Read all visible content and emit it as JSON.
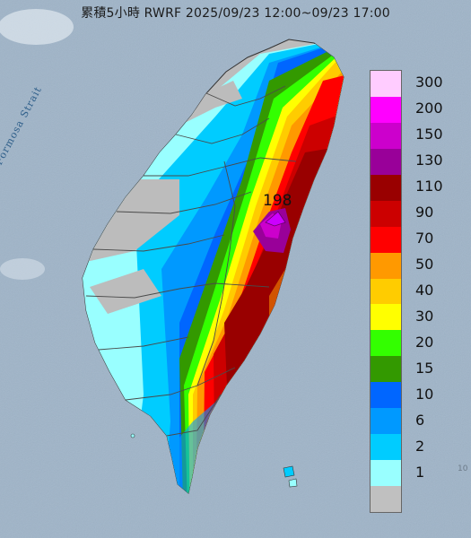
{
  "map": {
    "title": "累積5小時 RWRF 2025/09/23 12:00~09/23 17:00",
    "strait_label": "Formosa Strait",
    "peak_value_label": "198",
    "edge_mark": "10",
    "sea_color": "#9fb4c8",
    "no_rain_color": "#bcbcbc",
    "county_border_color": "#4a4a4a"
  },
  "legend": {
    "items": [
      {
        "label": "300",
        "color": "#ffccff"
      },
      {
        "label": "200",
        "color": "#ff00ff"
      },
      {
        "label": "150",
        "color": "#cc00cc"
      },
      {
        "label": "130",
        "color": "#990099"
      },
      {
        "label": "110",
        "color": "#990000"
      },
      {
        "label": "90",
        "color": "#cc0000"
      },
      {
        "label": "70",
        "color": "#ff0000"
      },
      {
        "label": "50",
        "color": "#ff9900"
      },
      {
        "label": "40",
        "color": "#ffcc00"
      },
      {
        "label": "30",
        "color": "#ffff00"
      },
      {
        "label": "20",
        "color": "#33ff00"
      },
      {
        "label": "15",
        "color": "#339900"
      },
      {
        "label": "10",
        "color": "#0066ff"
      },
      {
        "label": "6",
        "color": "#0099ff"
      },
      {
        "label": "2",
        "color": "#00ccff"
      },
      {
        "label": "1",
        "color": "#99ffff"
      },
      {
        "label": "",
        "color": "#c0c0c0"
      }
    ]
  }
}
